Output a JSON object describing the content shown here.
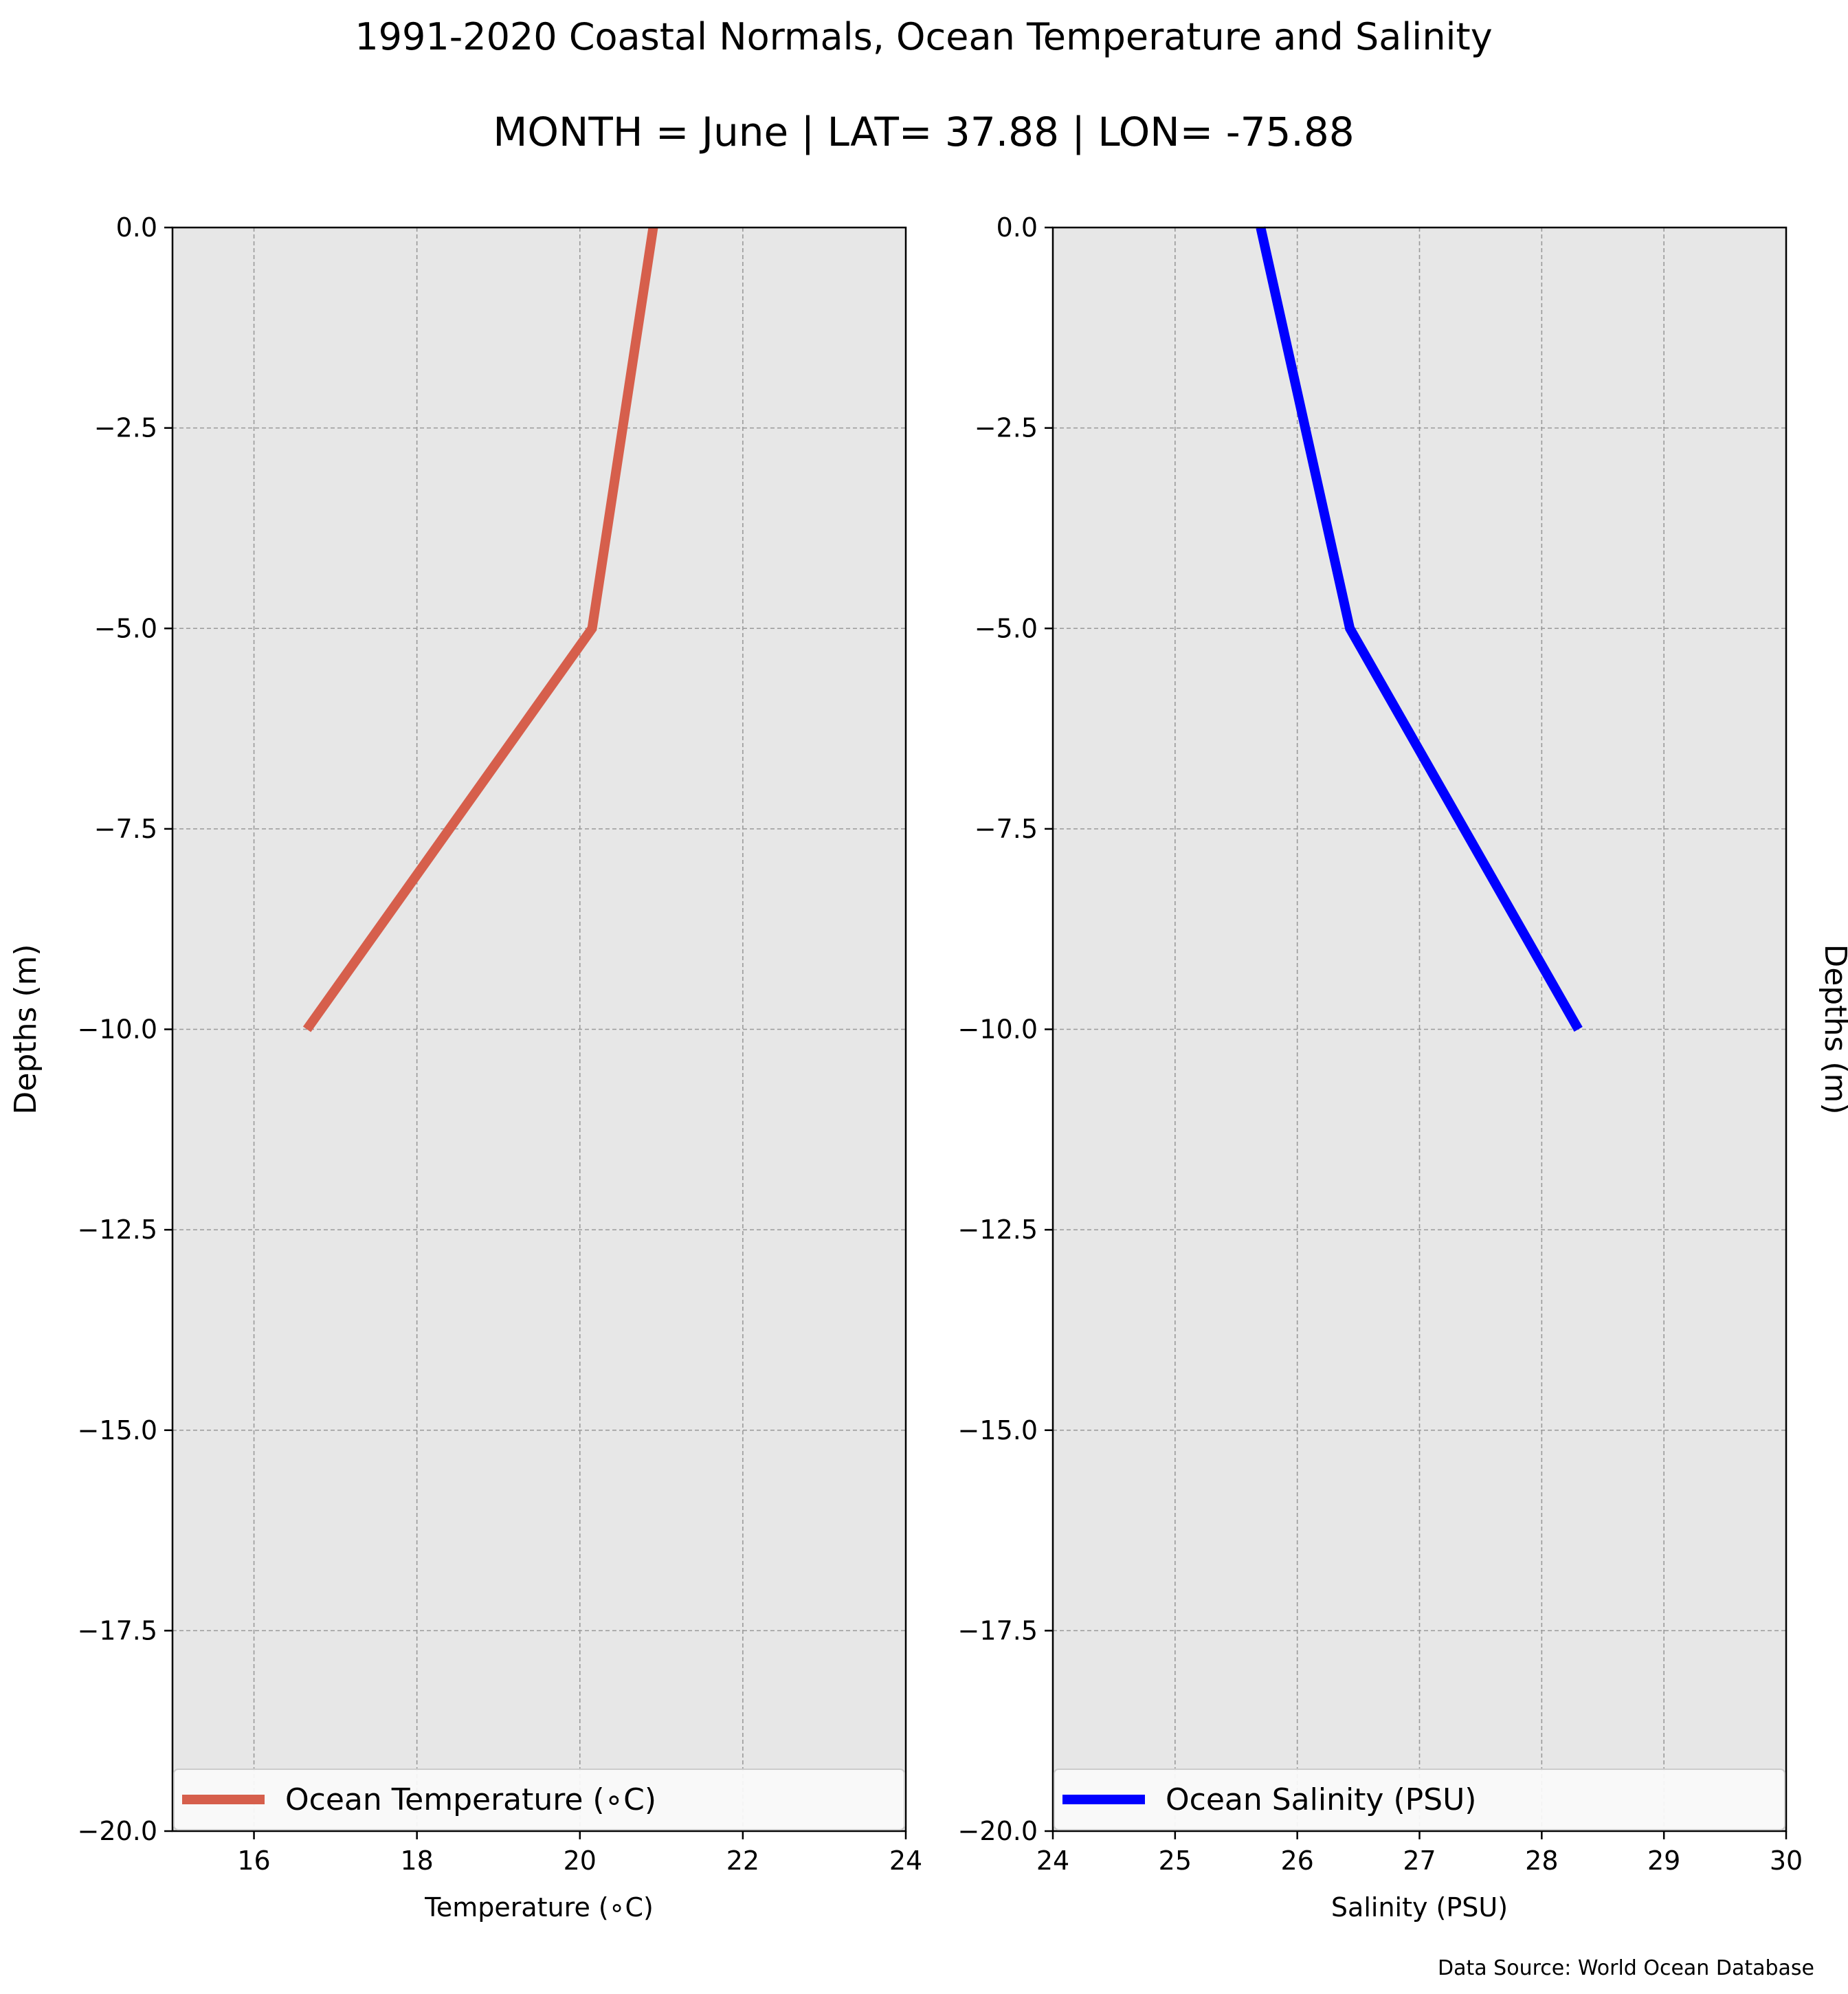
{
  "title": "1991-2020 Coastal Normals, Ocean Temperature and Salinity",
  "subtitle": "MONTH = June | LAT= 37.88 | LON= -75.88",
  "source_note": "Data Source: World Ocean Database",
  "chart_data": [
    {
      "type": "line",
      "xlabel": "Temperature (∘C)",
      "ylabel": "Depths (m)",
      "xlim": [
        15,
        24
      ],
      "ylim": [
        -20,
        0
      ],
      "xticks": [
        16,
        18,
        20,
        22,
        24
      ],
      "xtick_labels": [
        "16",
        "18",
        "20",
        "22",
        "24"
      ],
      "yticks": [
        0,
        -2.5,
        -5,
        -7.5,
        -10,
        -12.5,
        -15,
        -17.5,
        -20
      ],
      "ytick_labels": [
        "0.0",
        "−2.5",
        "−5.0",
        "−7.5",
        "−10.0",
        "−12.5",
        "−15.0",
        "−17.5",
        "−20.0"
      ],
      "grid": true,
      "legend_position": "lower center",
      "series": [
        {
          "name": "Ocean Temperature (∘C)",
          "color": "#d65f4c",
          "x": [
            20.9,
            20.15,
            16.65
          ],
          "y": [
            0,
            -5,
            -10
          ]
        }
      ]
    },
    {
      "type": "line",
      "xlabel": "Salinity (PSU)",
      "ylabel": "Depths (m)",
      "xlim": [
        24,
        30
      ],
      "ylim": [
        -20,
        0
      ],
      "xticks": [
        24,
        25,
        26,
        27,
        28,
        29,
        30
      ],
      "xtick_labels": [
        "24",
        "25",
        "26",
        "27",
        "28",
        "29",
        "30"
      ],
      "yticks": [
        0,
        -2.5,
        -5,
        -7.5,
        -10,
        -12.5,
        -15,
        -17.5,
        -20
      ],
      "ytick_labels": [
        "0.0",
        "−2.5",
        "−5.0",
        "−7.5",
        "−10.0",
        "−12.5",
        "−15.0",
        "−17.5",
        "−20.0"
      ],
      "grid": true,
      "legend_position": "lower center",
      "series": [
        {
          "name": "Ocean Salinity (PSU)",
          "color": "#0000ff",
          "x": [
            25.7,
            26.43,
            28.3
          ],
          "y": [
            0,
            -5,
            -10
          ]
        }
      ]
    }
  ]
}
